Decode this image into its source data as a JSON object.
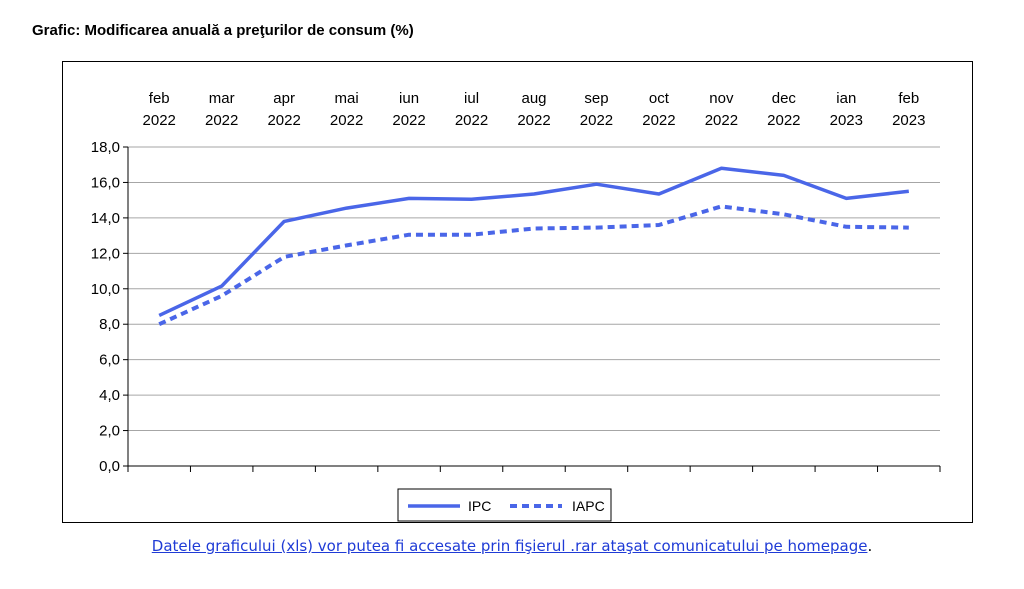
{
  "page": {
    "title": "Grafic: Modificarea anuală a preţurilor de consum (%)",
    "footnote_link": "Datele graficului (xls) vor putea fi accesate prin fişierul .rar  ataşat comunicatului pe homepage",
    "footnote_end": "."
  },
  "chart_data": {
    "type": "line",
    "title": "Grafic: Modificarea anuală a preţurilor de consum (%)",
    "categories": [
      [
        "feb",
        "2022"
      ],
      [
        "mar",
        "2022"
      ],
      [
        "apr",
        "2022"
      ],
      [
        "mai",
        "2022"
      ],
      [
        "iun",
        "2022"
      ],
      [
        "iul",
        "2022"
      ],
      [
        "aug",
        "2022"
      ],
      [
        "sep",
        "2022"
      ],
      [
        "oct",
        "2022"
      ],
      [
        "nov",
        "2022"
      ],
      [
        "dec",
        "2022"
      ],
      [
        "ian",
        "2023"
      ],
      [
        "feb",
        "2023"
      ]
    ],
    "ylim": [
      0,
      18
    ],
    "yticks": [
      "0,0",
      "2,0",
      "4,0",
      "6,0",
      "8,0",
      "10,0",
      "12,0",
      "14,0",
      "16,0",
      "18,0"
    ],
    "grid": true,
    "legend_position": "bottom",
    "series": [
      {
        "name": "IPC",
        "style": "solid",
        "color": "#4a66e8",
        "values": [
          8.5,
          10.15,
          13.8,
          14.55,
          15.1,
          15.05,
          15.35,
          15.9,
          15.35,
          16.8,
          16.4,
          15.1,
          15.5
        ]
      },
      {
        "name": "IAPC",
        "style": "dotted",
        "color": "#4a66e8",
        "values": [
          8.0,
          9.6,
          11.8,
          12.45,
          13.05,
          13.05,
          13.4,
          13.45,
          13.6,
          14.65,
          14.2,
          13.5,
          13.45
        ]
      }
    ]
  }
}
